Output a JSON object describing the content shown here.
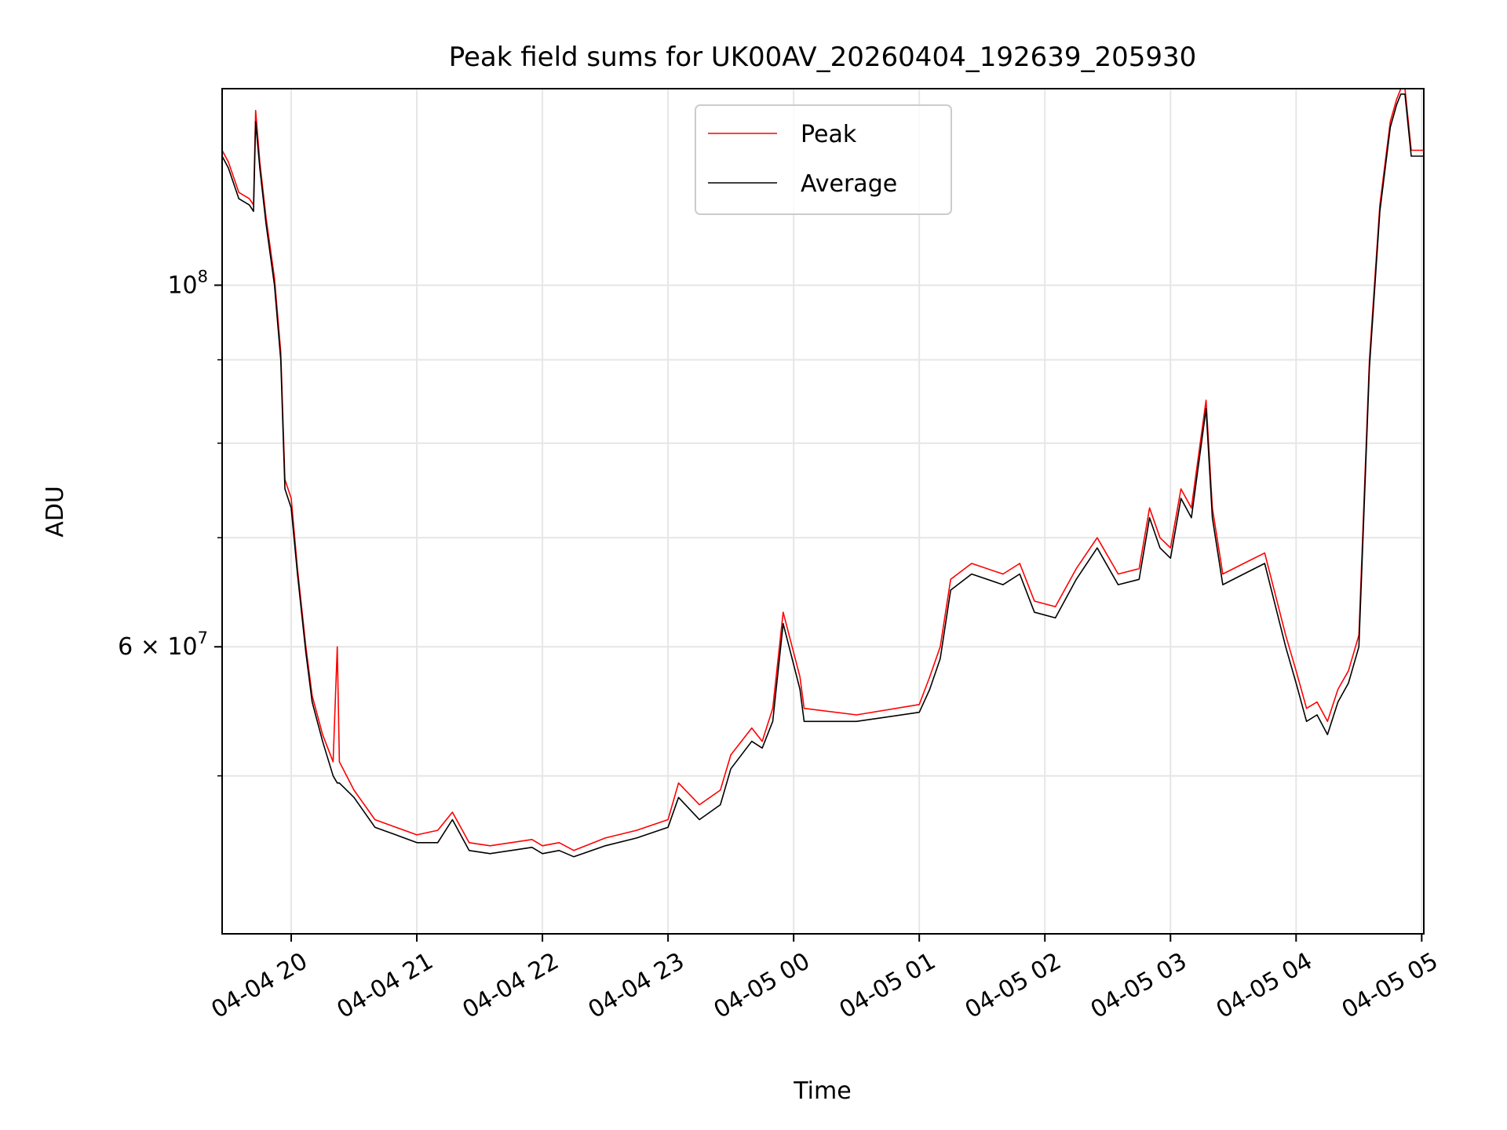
{
  "chart_data": {
    "type": "line",
    "title": "Peak field sums for UK00AV_20260404_192639_205930",
    "xlabel": "Time",
    "ylabel": "ADU",
    "y_scale": "log",
    "ylim": [
      40000000,
      132000000
    ],
    "xlim": [
      "2026-04-04 19:27",
      "2026-04-05 05:01"
    ],
    "x_ticks": [
      {
        "value": "2026-04-04 20:00",
        "label": "04-04 20"
      },
      {
        "value": "2026-04-04 21:00",
        "label": "04-04 21"
      },
      {
        "value": "2026-04-04 22:00",
        "label": "04-04 22"
      },
      {
        "value": "2026-04-04 23:00",
        "label": "04-04 23"
      },
      {
        "value": "2026-04-05 00:00",
        "label": "04-05 00"
      },
      {
        "value": "2026-04-05 01:00",
        "label": "04-05 01"
      },
      {
        "value": "2026-04-05 02:00",
        "label": "04-05 02"
      },
      {
        "value": "2026-04-05 03:00",
        "label": "04-05 03"
      },
      {
        "value": "2026-04-05 04:00",
        "label": "04-05 04"
      },
      {
        "value": "2026-04-05 05:00",
        "label": "04-05 05"
      }
    ],
    "y_ticks": [
      {
        "value": 100000000,
        "label": "10",
        "exp": "8"
      },
      {
        "value": 60000000,
        "label": "6 × 10",
        "exp": "7"
      }
    ],
    "y_minor_grid": [
      50000000,
      70000000,
      80000000,
      90000000
    ],
    "grid": true,
    "legend": "top-center",
    "series": [
      {
        "name": "Peak",
        "color": "#ff0000",
        "x": [
          "2026-04-04 19:27",
          "2026-04-04 19:30",
          "2026-04-04 19:35",
          "2026-04-04 19:40",
          "2026-04-04 19:42",
          "2026-04-04 19:43",
          "2026-04-04 19:45",
          "2026-04-04 19:48",
          "2026-04-04 19:52",
          "2026-04-04 19:55",
          "2026-04-04 19:57",
          "2026-04-04 20:00",
          "2026-04-04 20:03",
          "2026-04-04 20:07",
          "2026-04-04 20:10",
          "2026-04-04 20:15",
          "2026-04-04 20:20",
          "2026-04-04 20:22",
          "2026-04-04 20:23",
          "2026-04-04 20:30",
          "2026-04-04 20:40",
          "2026-04-04 20:50",
          "2026-04-04 21:00",
          "2026-04-04 21:10",
          "2026-04-04 21:17",
          "2026-04-04 21:25",
          "2026-04-04 21:35",
          "2026-04-04 21:45",
          "2026-04-04 21:55",
          "2026-04-04 22:00",
          "2026-04-04 22:08",
          "2026-04-04 22:15",
          "2026-04-04 22:30",
          "2026-04-04 22:45",
          "2026-04-04 23:00",
          "2026-04-04 23:05",
          "2026-04-04 23:15",
          "2026-04-04 23:25",
          "2026-04-04 23:30",
          "2026-04-04 23:40",
          "2026-04-04 23:45",
          "2026-04-04 23:50",
          "2026-04-04 23:55",
          "2026-04-05 00:03",
          "2026-04-05 00:05",
          "2026-04-05 00:30",
          "2026-04-05 01:00",
          "2026-04-05 01:05",
          "2026-04-05 01:10",
          "2026-04-05 01:15",
          "2026-04-05 01:25",
          "2026-04-05 01:40",
          "2026-04-05 01:48",
          "2026-04-05 01:55",
          "2026-04-05 02:05",
          "2026-04-05 02:15",
          "2026-04-05 02:25",
          "2026-04-05 02:35",
          "2026-04-05 02:45",
          "2026-04-05 02:50",
          "2026-04-05 02:55",
          "2026-04-05 03:00",
          "2026-04-05 03:05",
          "2026-04-05 03:10",
          "2026-04-05 03:17",
          "2026-04-05 03:20",
          "2026-04-05 03:25",
          "2026-04-05 03:35",
          "2026-04-05 03:45",
          "2026-04-05 03:55",
          "2026-04-05 04:00",
          "2026-04-05 04:05",
          "2026-04-05 04:10",
          "2026-04-05 04:15",
          "2026-04-05 04:20",
          "2026-04-05 04:25",
          "2026-04-05 04:30",
          "2026-04-05 04:35",
          "2026-04-05 04:40",
          "2026-04-05 04:45",
          "2026-04-05 04:48",
          "2026-04-05 04:50",
          "2026-04-05 04:52",
          "2026-04-05 04:55",
          "2026-04-05 04:58",
          "2026-04-05 05:01"
        ],
        "values": [
          121000000,
          119000000,
          114000000,
          113000000,
          112000000,
          128000000,
          119000000,
          110000000,
          101000000,
          91000000,
          76000000,
          74000000,
          67000000,
          60000000,
          56000000,
          53000000,
          51000000,
          60000000,
          51000000,
          49000000,
          47000000,
          46500000,
          46000000,
          46300000,
          47500000,
          45500000,
          45300000,
          45500000,
          45700000,
          45300000,
          45500000,
          45000000,
          45800000,
          46300000,
          47000000,
          49500000,
          48000000,
          49000000,
          51500000,
          53500000,
          52500000,
          55000000,
          63000000,
          57500000,
          55000000,
          54500000,
          55300000,
          57500000,
          60000000,
          66000000,
          67500000,
          66500000,
          67500000,
          64000000,
          63500000,
          67000000,
          70000000,
          66500000,
          67000000,
          73000000,
          70000000,
          69000000,
          75000000,
          73000000,
          85000000,
          73000000,
          66500000,
          67500000,
          68500000,
          61000000,
          58000000,
          55000000,
          55500000,
          54000000,
          56500000,
          58000000,
          61000000,
          90000000,
          112000000,
          126000000,
          130000000,
          132000000,
          132000000,
          121000000,
          121000000,
          121000000
        ]
      },
      {
        "name": "Average",
        "color": "#000000",
        "x": [
          "2026-04-04 19:27",
          "2026-04-04 19:30",
          "2026-04-04 19:35",
          "2026-04-04 19:40",
          "2026-04-04 19:42",
          "2026-04-04 19:43",
          "2026-04-04 19:45",
          "2026-04-04 19:48",
          "2026-04-04 19:52",
          "2026-04-04 19:55",
          "2026-04-04 19:57",
          "2026-04-04 20:00",
          "2026-04-04 20:03",
          "2026-04-04 20:07",
          "2026-04-04 20:10",
          "2026-04-04 20:15",
          "2026-04-04 20:20",
          "2026-04-04 20:22",
          "2026-04-04 20:23",
          "2026-04-04 20:30",
          "2026-04-04 20:40",
          "2026-04-04 20:50",
          "2026-04-04 21:00",
          "2026-04-04 21:10",
          "2026-04-04 21:17",
          "2026-04-04 21:25",
          "2026-04-04 21:35",
          "2026-04-04 21:45",
          "2026-04-04 21:55",
          "2026-04-04 22:00",
          "2026-04-04 22:08",
          "2026-04-04 22:15",
          "2026-04-04 22:30",
          "2026-04-04 22:45",
          "2026-04-04 23:00",
          "2026-04-04 23:05",
          "2026-04-04 23:15",
          "2026-04-04 23:25",
          "2026-04-04 23:30",
          "2026-04-04 23:40",
          "2026-04-04 23:45",
          "2026-04-04 23:50",
          "2026-04-04 23:55",
          "2026-04-05 00:03",
          "2026-04-05 00:05",
          "2026-04-05 00:30",
          "2026-04-05 01:00",
          "2026-04-05 01:05",
          "2026-04-05 01:10",
          "2026-04-05 01:15",
          "2026-04-05 01:25",
          "2026-04-05 01:40",
          "2026-04-05 01:48",
          "2026-04-05 01:55",
          "2026-04-05 02:05",
          "2026-04-05 02:15",
          "2026-04-05 02:25",
          "2026-04-05 02:35",
          "2026-04-05 02:45",
          "2026-04-05 02:50",
          "2026-04-05 02:55",
          "2026-04-05 03:00",
          "2026-04-05 03:05",
          "2026-04-05 03:10",
          "2026-04-05 03:17",
          "2026-04-05 03:20",
          "2026-04-05 03:25",
          "2026-04-05 03:35",
          "2026-04-05 03:45",
          "2026-04-05 03:55",
          "2026-04-05 04:00",
          "2026-04-05 04:05",
          "2026-04-05 04:10",
          "2026-04-05 04:15",
          "2026-04-05 04:20",
          "2026-04-05 04:25",
          "2026-04-05 04:30",
          "2026-04-05 04:35",
          "2026-04-05 04:40",
          "2026-04-05 04:45",
          "2026-04-05 04:48",
          "2026-04-05 04:50",
          "2026-04-05 04:52",
          "2026-04-05 04:55",
          "2026-04-05 04:58",
          "2026-04-05 05:01"
        ],
        "values": [
          120000000,
          118000000,
          113000000,
          112000000,
          111000000,
          126000000,
          118000000,
          109000000,
          100000000,
          90000000,
          75000000,
          73000000,
          66500000,
          59500000,
          55500000,
          52500000,
          50000000,
          49500000,
          49500000,
          48500000,
          46500000,
          46000000,
          45500000,
          45500000,
          47000000,
          45000000,
          44800000,
          45000000,
          45200000,
          44800000,
          45000000,
          44600000,
          45300000,
          45800000,
          46500000,
          48500000,
          47000000,
          48000000,
          50500000,
          52500000,
          52000000,
          54000000,
          62000000,
          56500000,
          54000000,
          54000000,
          54700000,
          56500000,
          59000000,
          65000000,
          66500000,
          65500000,
          66500000,
          63000000,
          62500000,
          66000000,
          69000000,
          65500000,
          66000000,
          72000000,
          69000000,
          68000000,
          74000000,
          72000000,
          84000000,
          72000000,
          65500000,
          66500000,
          67500000,
          60000000,
          57000000,
          54000000,
          54500000,
          53000000,
          55500000,
          57000000,
          60000000,
          89000000,
          111000000,
          125000000,
          129000000,
          131000000,
          131000000,
          120000000,
          120000000,
          120000000
        ]
      }
    ]
  }
}
